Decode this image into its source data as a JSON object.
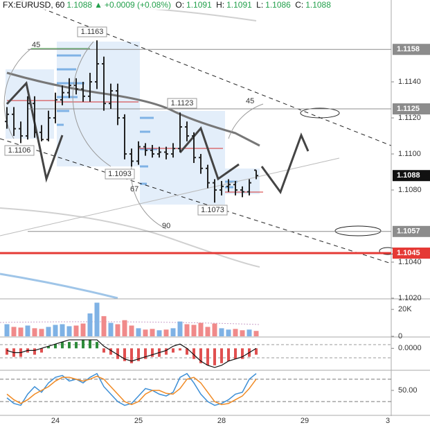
{
  "header": {
    "symbol": "FX:EURUSD, 60",
    "change": "+0.0009 (+0.08%)",
    "labels": [
      "O:",
      "H:",
      "L:",
      "C:"
    ]
  },
  "chart_data": {
    "type": "ohlc",
    "bar_color": "#222222",
    "categories": [
      null,
      null,
      null,
      null,
      null,
      null,
      null,
      "24",
      null,
      null,
      null,
      null,
      null,
      null,
      null,
      null,
      null,
      null,
      null,
      "25",
      null,
      null,
      null,
      null,
      null,
      null,
      null,
      null,
      null,
      null,
      null,
      "28",
      null,
      null,
      null,
      null,
      null,
      null,
      null,
      null,
      null,
      null,
      null,
      "29",
      null,
      null,
      null,
      null,
      null,
      null,
      null,
      null,
      null,
      null,
      null,
      "3"
    ],
    "open": [
      1.1118,
      1.1122,
      1.1114,
      1.111,
      1.1128,
      1.1112,
      1.1108,
      1.112,
      1.113,
      1.1134,
      1.1138,
      1.1136,
      1.1132,
      1.114,
      1.115,
      1.1128,
      1.1135,
      1.112,
      1.11,
      1.1096,
      1.1104,
      1.1102,
      1.11,
      1.1101,
      1.11,
      1.1103,
      1.1115,
      1.111,
      1.1098,
      1.1092,
      1.1084,
      1.108,
      1.1082,
      1.1083,
      1.108,
      1.1079,
      1.1091,
      null,
      null,
      null,
      null,
      null,
      null,
      null,
      null,
      null,
      null,
      null,
      null,
      null,
      null,
      null,
      null,
      null,
      null,
      null
    ],
    "high": [
      1.1126,
      1.1126,
      1.1118,
      1.1132,
      1.1132,
      1.1116,
      1.1124,
      1.1134,
      1.1138,
      1.1142,
      1.1142,
      1.114,
      1.1145,
      1.1163,
      1.1154,
      1.1139,
      1.1139,
      1.1122,
      1.1103,
      1.1107,
      1.1106,
      1.1105,
      1.1104,
      1.1104,
      1.1106,
      1.1123,
      1.1118,
      1.1112,
      1.11,
      1.1094,
      1.1086,
      1.1085,
      1.1086,
      1.1085,
      1.1082,
      1.1086,
      1.1091,
      null,
      null,
      null,
      null,
      null,
      null,
      null,
      null,
      null,
      null,
      null,
      null,
      null,
      null,
      null,
      null,
      null,
      null,
      null
    ],
    "low": [
      1.1114,
      1.111,
      1.1106,
      1.1108,
      1.1109,
      1.1107,
      1.1107,
      1.1117,
      1.1127,
      1.1131,
      1.1133,
      1.1129,
      1.1129,
      1.1136,
      1.1124,
      1.1125,
      1.1116,
      1.1097,
      1.1093,
      1.1094,
      1.1099,
      1.1098,
      1.1098,
      1.1097,
      1.1098,
      1.1101,
      1.1107,
      1.1095,
      1.1089,
      1.1081,
      1.1073,
      1.1077,
      1.1079,
      1.1077,
      1.1076,
      1.1077,
      1.1086,
      null,
      null,
      null,
      null,
      null,
      null,
      null,
      null,
      null,
      null,
      null,
      null,
      null,
      null,
      null,
      null,
      null,
      null,
      null
    ],
    "close": [
      1.1122,
      1.1114,
      1.111,
      1.1128,
      1.1112,
      1.1108,
      1.112,
      1.113,
      1.1134,
      1.1138,
      1.1136,
      1.1132,
      1.114,
      1.115,
      1.1128,
      1.1135,
      1.112,
      1.11,
      1.1096,
      1.1104,
      1.1102,
      1.11,
      1.1101,
      1.11,
      1.1103,
      1.1115,
      1.111,
      1.1098,
      1.1092,
      1.1084,
      1.108,
      1.1082,
      1.1083,
      1.108,
      1.1079,
      1.1084,
      1.1088,
      null,
      null,
      null,
      null,
      null,
      null,
      null,
      null,
      null,
      null,
      null,
      null,
      null,
      null,
      null,
      null,
      null,
      null,
      null
    ],
    "ylim": [
      1.102,
      1.11854
    ],
    "yticks": [
      {
        "value": 1.114,
        "label": "1.1140"
      },
      {
        "value": 1.112,
        "label": "1.1120"
      },
      {
        "value": 1.11,
        "label": "1.1100"
      },
      {
        "value": 1.108,
        "label": "1.1080"
      },
      {
        "value": 1.104,
        "label": "1.1040"
      },
      {
        "value": 1.102,
        "label": "1.1020"
      }
    ],
    "levels": [
      {
        "value": 1.1158,
        "color": "#8c8c8c",
        "line": true
      },
      {
        "value": 1.1125,
        "color": "#8c8c8c",
        "line": true
      },
      {
        "value": 1.1088,
        "color": "#111111",
        "line": false
      },
      {
        "value": 1.1057,
        "color": "#8c8c8c",
        "line": true
      },
      {
        "value": 1.1045,
        "color": "#e53935",
        "line": true
      }
    ],
    "annotations": [
      1.1163,
      1.1123,
      1.1106,
      1.1093,
      1.1073,
      45,
      45,
      67,
      90
    ],
    "volume": {
      "values": [
        9000,
        7000,
        6500,
        8000,
        6000,
        5500,
        7000,
        8500,
        9000,
        7500,
        8000,
        9500,
        17000,
        25000,
        15000,
        10000,
        9000,
        12000,
        8000,
        6000,
        5000,
        5500,
        4500,
        5000,
        6000,
        11000,
        9000,
        8500,
        10000,
        7000,
        9500,
        6000,
        5000,
        5500,
        4500,
        5000,
        4000,
        null,
        null,
        null,
        null,
        null,
        null,
        null,
        null,
        null,
        null,
        null,
        null,
        null,
        null,
        null,
        null,
        null,
        null,
        null
      ],
      "up_color": "#7fb2e5",
      "down_color": "#f08a8a",
      "ylim": [
        0,
        26800
      ],
      "yticks": [
        0,
        {
          "value": 20000,
          "label": "20K"
        }
      ]
    },
    "macd": {
      "histogram": [
        -0.0003,
        -0.0004,
        -0.0004,
        -0.0002,
        -0.0003,
        -0.0002,
        0.0001,
        0.0002,
        0.0003,
        0.0003,
        0.0003,
        0.0004,
        0.0004,
        0.0003,
        -0.0002,
        -0.0003,
        -0.0005,
        -0.0006,
        -0.0007,
        -0.0006,
        -0.0005,
        -0.0004,
        -0.0004,
        -0.0003,
        -0.0002,
        -0.0001,
        -0.0003,
        -0.0005,
        -0.0007,
        -0.0008,
        -0.0008,
        -0.0007,
        -0.0006,
        -0.0005,
        -0.0005,
        -0.0004,
        -0.0003,
        null,
        null,
        null,
        null,
        null,
        null,
        null,
        null,
        null,
        null,
        null,
        null,
        null,
        null,
        null,
        null,
        null,
        null,
        null
      ],
      "line": [
        -0.0001,
        -0.0002,
        -0.0002,
        -0.0001,
        -0.0001,
        0,
        0.0001,
        0.0002,
        0.0003,
        0.0004,
        0.0004,
        0.0004,
        0.0004,
        0.0004,
        0.0001,
        -0.0001,
        -0.0003,
        -0.0005,
        -0.0006,
        -0.0005,
        -0.0004,
        -0.0003,
        -0.0002,
        -0.0001,
        0.0001,
        0.0002,
        0,
        -0.0003,
        -0.0006,
        -0.0008,
        -0.0009,
        -0.0008,
        -0.0006,
        -0.0005,
        -0.0004,
        -0.0002,
        0,
        null,
        null,
        null,
        null,
        null,
        null,
        null,
        null,
        null,
        null,
        null,
        null,
        null,
        null,
        null,
        null,
        null,
        null,
        null
      ],
      "pos_color": "#2e8b3a",
      "neg_color": "#e05050",
      "line_color": "#111111",
      "ylim": [
        -0.001,
        0.0005
      ],
      "yticks": [
        {
          "value": 0,
          "label": "0.0000"
        }
      ]
    },
    "stochastic": {
      "lines": [
        {
          "color": "#3d8fd6",
          "values": [
            30,
            15,
            10,
            40,
            60,
            45,
            70,
            85,
            90,
            75,
            80,
            70,
            85,
            95,
            60,
            40,
            20,
            10,
            15,
            35,
            55,
            50,
            40,
            35,
            45,
            85,
            95,
            70,
            40,
            20,
            10,
            15,
            25,
            40,
            45,
            80,
            95,
            null,
            null,
            null,
            null,
            null,
            null,
            null,
            null,
            null,
            null,
            null,
            null,
            null,
            null,
            null,
            null,
            null,
            null,
            null
          ]
        },
        {
          "color": "#f08a24",
          "values": [
            40,
            25,
            15,
            25,
            40,
            50,
            60,
            75,
            85,
            85,
            80,
            75,
            80,
            88,
            80,
            60,
            40,
            20,
            12,
            20,
            40,
            50,
            50,
            42,
            40,
            55,
            80,
            85,
            70,
            45,
            20,
            12,
            15,
            25,
            35,
            55,
            80,
            null,
            null,
            null,
            null,
            null,
            null,
            null,
            null,
            null,
            null,
            null,
            null,
            null,
            null,
            null,
            null,
            null,
            null,
            null
          ]
        }
      ],
      "bands": [
        80,
        20
      ],
      "ylim": [
        -15,
        102
      ],
      "yticks": [
        {
          "value": 50,
          "label": "50.00"
        }
      ]
    }
  }
}
